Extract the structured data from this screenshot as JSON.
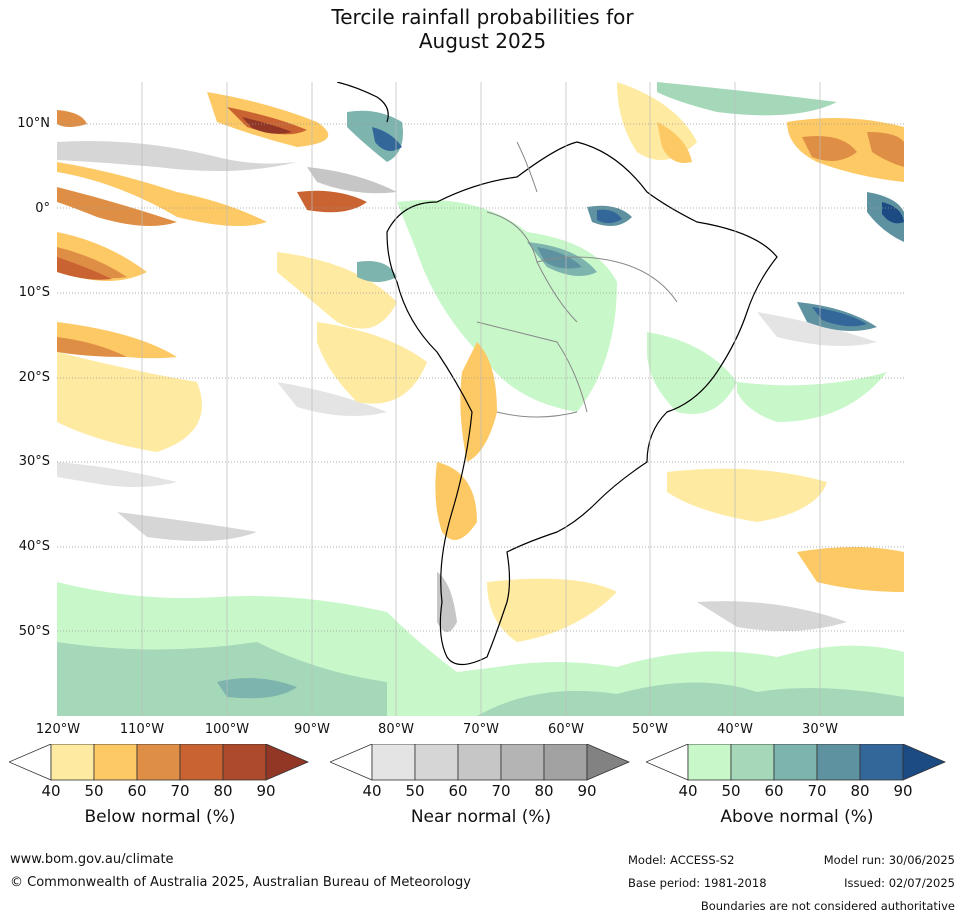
{
  "title_line1": "Tercile rainfall probabilities for",
  "title_line2": "August 2025",
  "map": {
    "lat_labels": [
      "10°N",
      "0°",
      "10°S",
      "20°S",
      "30°S",
      "40°S",
      "50°S"
    ],
    "lon_labels": [
      "120°W",
      "110°W",
      "100°W",
      "90°W",
      "80°W",
      "70°W",
      "60°W",
      "50°W",
      "40°W",
      "30°W"
    ]
  },
  "colorbars": {
    "below": {
      "title": "Below normal (%)",
      "ticks": [
        "40",
        "50",
        "60",
        "70",
        "80",
        "90"
      ],
      "colors": [
        "#feeaa0",
        "#fdc965",
        "#df8f45",
        "#c96432",
        "#ad4a2b",
        "#923625"
      ]
    },
    "near": {
      "title": "Near normal (%)",
      "ticks": [
        "40",
        "50",
        "60",
        "70",
        "80",
        "90"
      ],
      "colors": [
        "#e4e4e4",
        "#d6d6d6",
        "#c6c6c6",
        "#b4b4b4",
        "#a2a2a2",
        "#828282"
      ]
    },
    "above": {
      "title": "Above normal (%)",
      "ticks": [
        "40",
        "50",
        "60",
        "70",
        "80",
        "90"
      ],
      "colors": [
        "#c8f7ca",
        "#a5d8b9",
        "#7db4ad",
        "#5f92a0",
        "#33679a",
        "#1c4a82"
      ]
    }
  },
  "footer": {
    "website": "www.bom.gov.au/climate",
    "copyright": "© Commonwealth of Australia 2025, Australian Bureau of Meteorology",
    "model": "Model: ACCESS-S2",
    "base_period": "Base period: 1981-2018",
    "model_run": "Model run: 30/06/2025",
    "issued": "Issued: 02/07/2025",
    "boundaries_note": "Boundaries are not considered authoritative"
  }
}
